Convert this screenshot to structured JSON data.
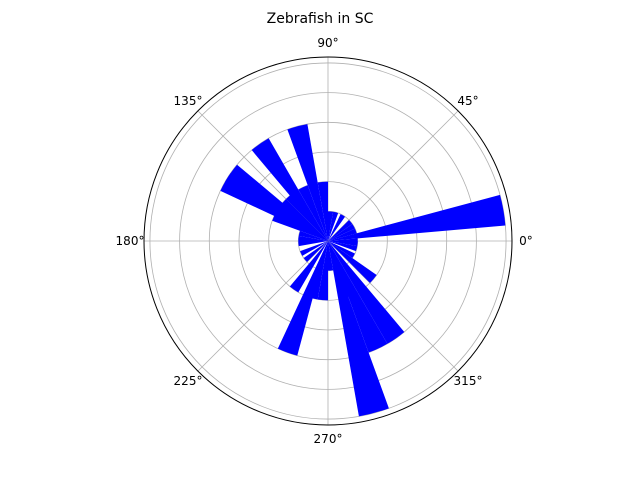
{
  "chart_data": {
    "type": "polar-bar",
    "title": "Zebrafish in SC",
    "theta_ticks": [
      {
        "deg": 0,
        "label": "0°"
      },
      {
        "deg": 45,
        "label": "45°"
      },
      {
        "deg": 90,
        "label": "90°"
      },
      {
        "deg": 135,
        "label": "135°"
      },
      {
        "deg": 180,
        "label": "180°"
      },
      {
        "deg": 225,
        "label": "225°"
      },
      {
        "deg": 270,
        "label": "270°"
      },
      {
        "deg": 315,
        "label": "315°"
      }
    ],
    "r_gridlines": [
      1,
      2,
      3,
      4,
      5,
      6
    ],
    "rlim": [
      0,
      6.2
    ],
    "bar_width_deg": 10,
    "bar_color": "#0000ff",
    "bars": [
      {
        "theta": 0,
        "r": 1.0
      },
      {
        "theta": 10,
        "r": 6.0
      },
      {
        "theta": 20,
        "r": 1.0
      },
      {
        "theta": 30,
        "r": 1.0
      },
      {
        "theta": 40,
        "r": 1.0
      },
      {
        "theta": 60,
        "r": 1.0
      },
      {
        "theta": 75,
        "r": 1.0
      },
      {
        "theta": 85,
        "r": 1.0
      },
      {
        "theta": 95,
        "r": 2.0
      },
      {
        "theta": 105,
        "r": 4.0
      },
      {
        "theta": 115,
        "r": 2.0
      },
      {
        "theta": 125,
        "r": 4.0
      },
      {
        "theta": 130,
        "r": 2.0
      },
      {
        "theta": 140,
        "r": 2.0
      },
      {
        "theta": 145,
        "r": 4.0
      },
      {
        "theta": 150,
        "r": 4.0
      },
      {
        "theta": 155,
        "r": 2.0
      },
      {
        "theta": 165,
        "r": 1.0
      },
      {
        "theta": 175,
        "r": 1.0
      },
      {
        "theta": 185,
        "r": 1.0
      },
      {
        "theta": 205,
        "r": 1.0
      },
      {
        "theta": 220,
        "r": 1.0
      },
      {
        "theta": 235,
        "r": 2.0
      },
      {
        "theta": 250,
        "r": 4.0
      },
      {
        "theta": 255,
        "r": 2.0
      },
      {
        "theta": 265,
        "r": 2.0
      },
      {
        "theta": 275,
        "r": 1.0
      },
      {
        "theta": 285,
        "r": 6.0
      },
      {
        "theta": 290,
        "r": 2.0
      },
      {
        "theta": 295,
        "r": 4.0
      },
      {
        "theta": 305,
        "r": 4.0
      },
      {
        "theta": 320,
        "r": 2.0
      },
      {
        "theta": 330,
        "r": 1.0
      },
      {
        "theta": 345,
        "r": 1.0
      },
      {
        "theta": 355,
        "r": 1.0
      }
    ]
  }
}
